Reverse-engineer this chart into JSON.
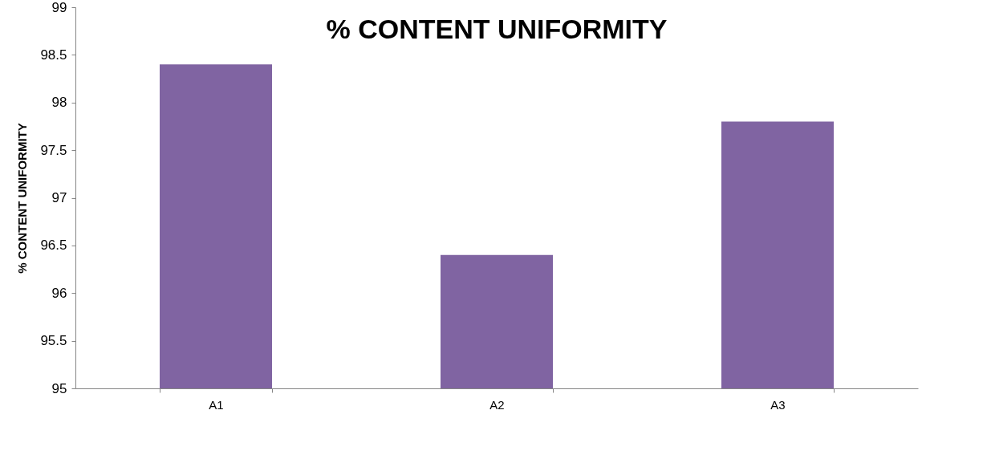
{
  "chart_data": {
    "type": "bar",
    "title": "% CONTENT UNIFORMITY",
    "ylabel": "% CONTENT UNIFORMITY",
    "categories": [
      "A1",
      "A2",
      "A3"
    ],
    "values": [
      98.4,
      96.4,
      97.8
    ],
    "color": "#8064a2",
    "ylim": [
      95,
      99
    ],
    "yticks": [
      95,
      95.5,
      96,
      96.5,
      97,
      97.5,
      98,
      98.5,
      99
    ],
    "grid": false
  }
}
